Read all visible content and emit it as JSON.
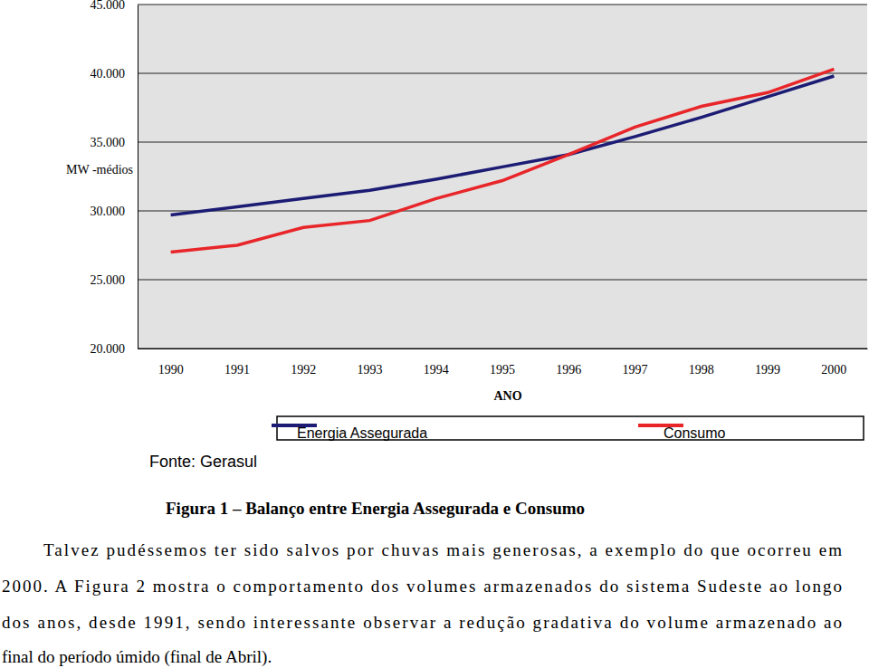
{
  "chart_data": {
    "type": "line",
    "y_label": "MW -médios",
    "x_label": "ANO",
    "source": "Fonte: Gerasul",
    "categories": [
      "1990",
      "1991",
      "1992",
      "1993",
      "1994",
      "1995",
      "1996",
      "1997",
      "1998",
      "1999",
      "2000"
    ],
    "series": [
      {
        "name": "Energia Assegurada",
        "color": "#1c1c74",
        "values": [
          29700,
          30300,
          30900,
          31500,
          32300,
          33200,
          34100,
          35400,
          36800,
          38300,
          39800
        ]
      },
      {
        "name": "Consumo",
        "color": "#e8262a",
        "values": [
          27000,
          27500,
          28800,
          29300,
          30900,
          32200,
          34100,
          36100,
          37600,
          38600,
          40300
        ]
      }
    ],
    "ylim": [
      20000,
      45000
    ],
    "yticks": [
      {
        "value": 20000,
        "label": "20.000"
      },
      {
        "value": 25000,
        "label": "25.000"
      },
      {
        "value": 30000,
        "label": "30.000"
      },
      {
        "value": 35000,
        "label": "35.000"
      },
      {
        "value": 40000,
        "label": "40.000"
      },
      {
        "value": 45000,
        "label": "45.000"
      }
    ],
    "grid": true,
    "legend": "bottom"
  },
  "caption": "Figura 1 – Balanço entre Energia Assegurada e Consumo",
  "paragraph": {
    "lines": [
      "Talvez pudéssemos ter sido salvos por chuvas mais generosas, a exemplo do que ocorreu em",
      "2000. A Figura 2 mostra o comportamento dos volumes armazenados do sistema Sudeste ao longo",
      "dos anos, desde 1991, sendo interessante observar a redução gradativa do volume armazenado ao",
      "final do período úmido (final de Abril)."
    ]
  }
}
